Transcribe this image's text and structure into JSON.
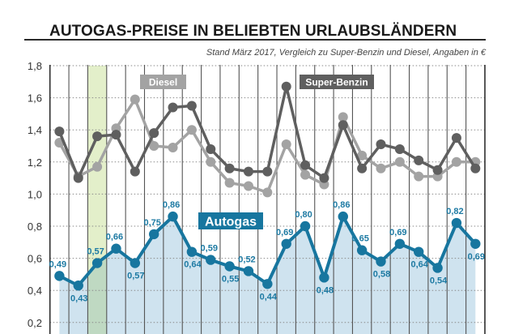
{
  "header": {
    "title": "AUTOGAS-PREISE IN BELIEBTEN URLAUBSLÄNDERN",
    "subtitle": "Stand März 2017, Vergleich zu Super-Benzin und Diesel, Angaben in €"
  },
  "colors": {
    "autogas": "#17769f",
    "autogas_fill": "#cfe3ef",
    "super": "#5f5f5f",
    "diesel": "#a3a3a3",
    "highlight": "#e3efca",
    "highlight_fill": "#bfd9c2"
  },
  "chart_data": {
    "type": "line",
    "title": "AUTOGAS-PREISE IN BELIEBTEN URLAUBSLÄNDERN",
    "subtitle": "Stand März 2017, Vergleich zu Super-Benzin und Diesel, Angaben in €",
    "xlabel": "",
    "ylabel": "",
    "ylim": [
      0.1,
      1.8
    ],
    "yticks": [
      "1,8",
      "1,6",
      "1,4",
      "1,2",
      "1,0",
      "0,8",
      "0,6",
      "0,4",
      "0,2"
    ],
    "ytick_values": [
      1.8,
      1.6,
      1.4,
      1.2,
      1.0,
      0.8,
      0.6,
      0.4,
      0.2
    ],
    "grid": true,
    "highlight_index": 2,
    "x": [
      1,
      2,
      3,
      4,
      5,
      6,
      7,
      8,
      9,
      10,
      11,
      12,
      13,
      14,
      15,
      16,
      17,
      18,
      19,
      20,
      21,
      22,
      23
    ],
    "series": [
      {
        "name": "Super-Benzin",
        "values": [
          1.39,
          1.1,
          1.36,
          1.37,
          1.14,
          1.38,
          1.54,
          1.55,
          1.28,
          1.16,
          1.14,
          1.14,
          1.67,
          1.18,
          1.1,
          1.43,
          1.16,
          1.31,
          1.28,
          1.21,
          1.15,
          1.35,
          1.16
        ]
      },
      {
        "name": "Diesel",
        "values": [
          1.32,
          1.11,
          1.17,
          1.41,
          1.59,
          1.3,
          1.29,
          1.4,
          1.2,
          1.07,
          1.05,
          1.01,
          1.31,
          1.12,
          1.06,
          1.48,
          1.24,
          1.16,
          1.2,
          1.11,
          1.11,
          1.2,
          1.2
        ]
      },
      {
        "name": "Autogas",
        "values": [
          0.49,
          0.43,
          0.57,
          0.66,
          0.57,
          0.75,
          0.86,
          0.64,
          0.59,
          0.55,
          0.52,
          0.44,
          0.69,
          0.8,
          0.48,
          0.86,
          0.65,
          0.58,
          0.69,
          0.64,
          0.54,
          0.82,
          0.69
        ],
        "labels": [
          "0,49",
          "0,43",
          "0,57",
          "0,66",
          "0,57",
          "0,75",
          "0,86",
          "0,64",
          "0,59",
          "0,55",
          "0,52",
          "0,44",
          "0,69",
          "0,80",
          "0,48",
          "0,86",
          "0,65",
          "0,58",
          "0,69",
          "0,64",
          "0,54",
          "0,82",
          "0,69"
        ],
        "label_side": [
          "above",
          "below",
          "above",
          "above",
          "below",
          "above",
          "above",
          "below",
          "above",
          "below",
          "above",
          "below",
          "above",
          "above",
          "below",
          "above",
          "above",
          "below",
          "above",
          "below",
          "below",
          "above",
          "below"
        ]
      }
    ],
    "legend": [
      {
        "label": "Diesel",
        "series": "Diesel"
      },
      {
        "label": "Super-Benzin",
        "series": "Super-Benzin"
      },
      {
        "label": "Autogas",
        "series": "Autogas"
      }
    ]
  }
}
